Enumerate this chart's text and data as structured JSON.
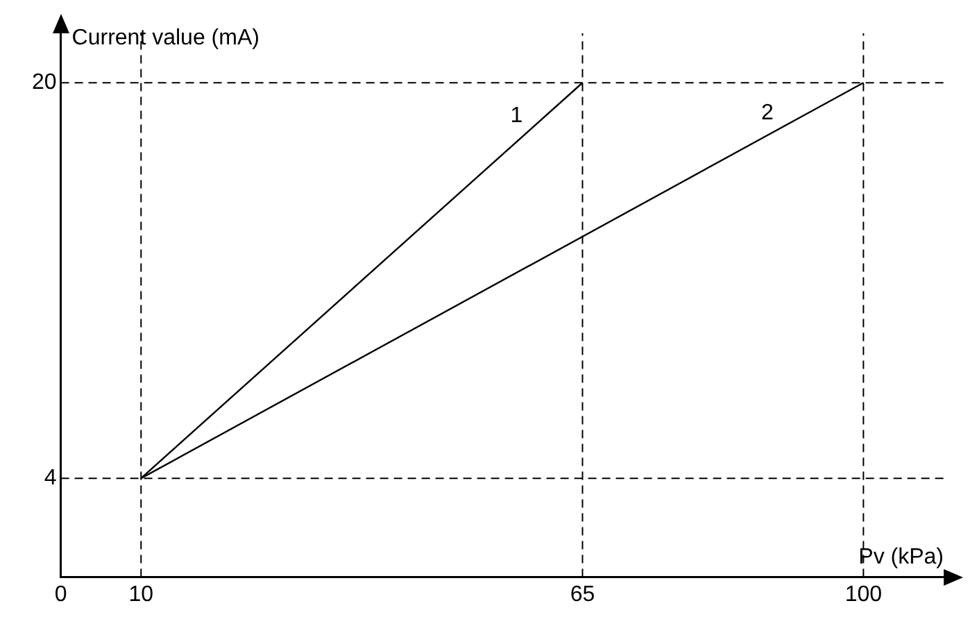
{
  "chart_data": {
    "type": "line",
    "xlabel": "Pv (kPa)",
    "ylabel": "Current value (mA)",
    "xlim": [
      0,
      110
    ],
    "ylim": [
      0,
      22
    ],
    "xticks": [
      0,
      10,
      65,
      100
    ],
    "yticks": [
      4,
      20
    ],
    "series": [
      {
        "name": "1",
        "color": "#000000",
        "x": [
          10,
          65
        ],
        "values": [
          4,
          20
        ]
      },
      {
        "name": "2",
        "color": "#000000",
        "x": [
          10,
          100
        ],
        "values": [
          4,
          20
        ]
      }
    ],
    "ref_lines": [
      {
        "axis": "x",
        "value": 10,
        "color": "#000000",
        "line_style": "dashed"
      },
      {
        "axis": "x",
        "value": 65,
        "color": "#000000",
        "line_style": "dashed"
      },
      {
        "axis": "x",
        "value": 100,
        "color": "#000000",
        "line_style": "dashed"
      },
      {
        "axis": "y",
        "value": 4,
        "color": "#000000",
        "line_style": "dashed"
      },
      {
        "axis": "y",
        "value": 20,
        "color": "#000000",
        "line_style": "dashed"
      }
    ],
    "grid": false,
    "legend": false,
    "marker": "none",
    "line_style": "solid"
  }
}
